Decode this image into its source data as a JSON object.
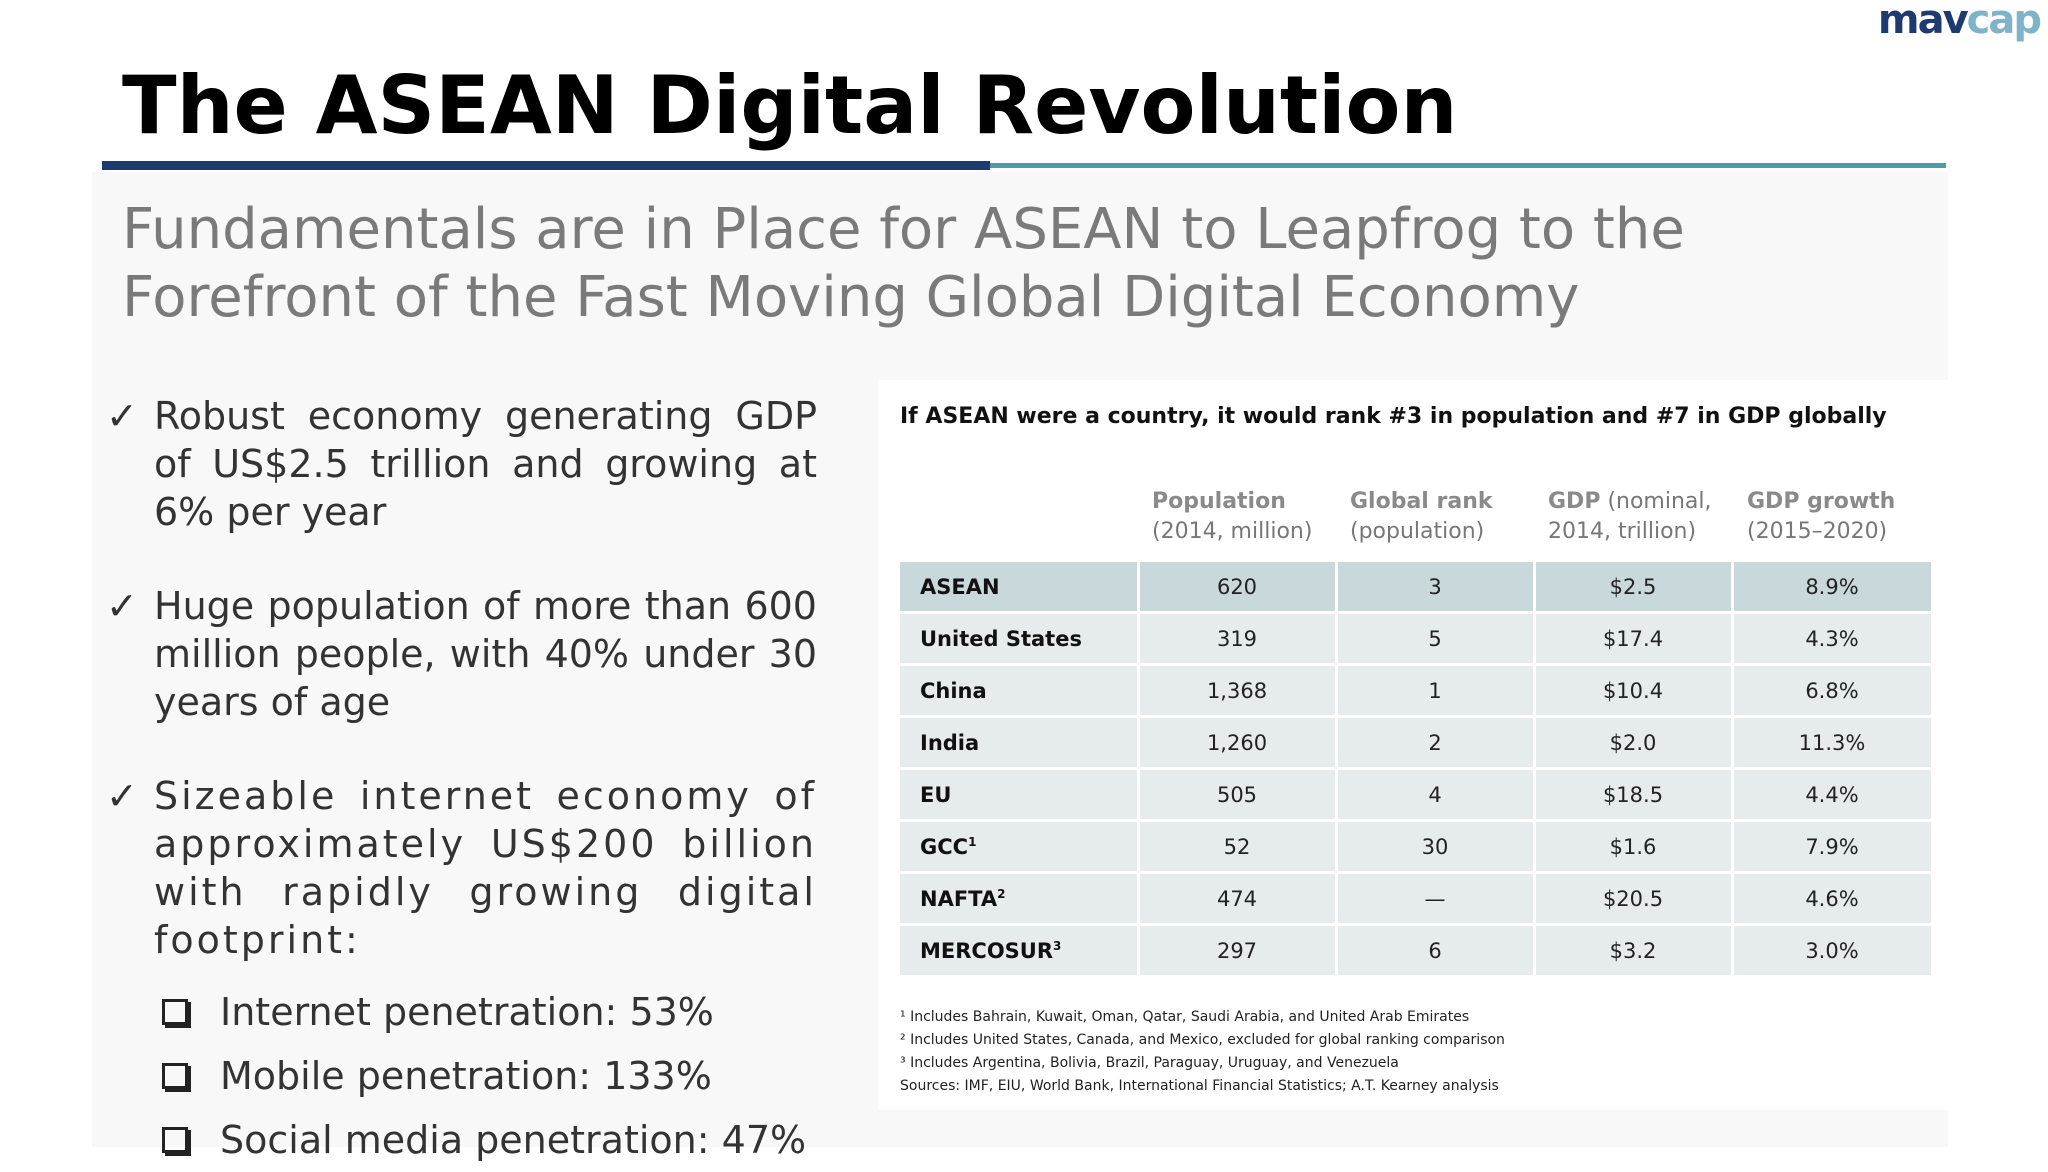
{
  "logo": {
    "part1": "mav",
    "part2": "cap"
  },
  "title": "The ASEAN Digital Revolution",
  "subtitle": "Fundamentals are in Place for ASEAN to Leapfrog to the Forefront of the Fast Moving Global Digital Economy",
  "bullets": [
    {
      "check": "✓",
      "text": "Robust economy generating GDP of US$2.5 trillion and growing at 6% per year"
    },
    {
      "check": "✓",
      "text": "Huge population of more than 600 million people, with 40% under 30 years of age"
    },
    {
      "check": "✓",
      "text": "Sizeable internet economy of approximately US$200 billion with rapidly growing digital footprint:"
    }
  ],
  "subitems": [
    {
      "label": "Internet penetration:",
      "value": "53%"
    },
    {
      "label": "Mobile penetration:",
      "value": "133%"
    },
    {
      "label": "Social media penetration:",
      "value": "47%"
    }
  ],
  "table": {
    "heading": "If ASEAN were a country, it would rank #3 in population and #7 in GDP globally",
    "columns": [
      {
        "bold": "Population",
        "rest": "",
        "line2": "(2014, million)"
      },
      {
        "bold": "Global rank",
        "rest": "",
        "line2": "(population)"
      },
      {
        "bold": "GDP",
        "rest": " (nominal,",
        "line2": "2014, trillion)"
      },
      {
        "bold": "GDP growth",
        "rest": "",
        "line2": "(2015–2020)"
      }
    ],
    "rows": [
      {
        "name": "ASEAN",
        "sup": "",
        "population": "620",
        "rank": "3",
        "gdp": "$2.5",
        "growth": "8.9%"
      },
      {
        "name": "United States",
        "sup": "",
        "population": "319",
        "rank": "5",
        "gdp": "$17.4",
        "growth": "4.3%"
      },
      {
        "name": "China",
        "sup": "",
        "population": "1,368",
        "rank": "1",
        "gdp": "$10.4",
        "growth": "6.8%"
      },
      {
        "name": "India",
        "sup": "",
        "population": "1,260",
        "rank": "2",
        "gdp": "$2.0",
        "growth": "11.3%"
      },
      {
        "name": "EU",
        "sup": "",
        "population": "505",
        "rank": "4",
        "gdp": "$18.5",
        "growth": "4.4%"
      },
      {
        "name": "GCC",
        "sup": "1",
        "population": "52",
        "rank": "30",
        "gdp": "$1.6",
        "growth": "7.9%"
      },
      {
        "name": "NAFTA",
        "sup": "2",
        "population": "474",
        "rank": "—",
        "gdp": "$20.5",
        "growth": "4.6%"
      },
      {
        "name": "MERCOSUR",
        "sup": "3",
        "population": "297",
        "rank": "6",
        "gdp": "$3.2",
        "growth": "3.0%"
      }
    ],
    "footnotes": [
      "¹ Includes Bahrain, Kuwait, Oman, Qatar, Saudi Arabia, and United Arab Emirates",
      "² Includes United States, Canada, and Mexico, excluded for global ranking comparison",
      "³ Includes Argentina, Bolivia, Brazil, Paraguay, Uruguay, and Venezuela",
      "Sources: IMF, EIU, World Bank, International Financial Statistics; A.T. Kearney analysis"
    ]
  },
  "colors": {
    "navy": "#1f3a6e",
    "teal": "#4f9aa8",
    "highlight_row": "#c8d8db",
    "row": "#e6ebee"
  }
}
